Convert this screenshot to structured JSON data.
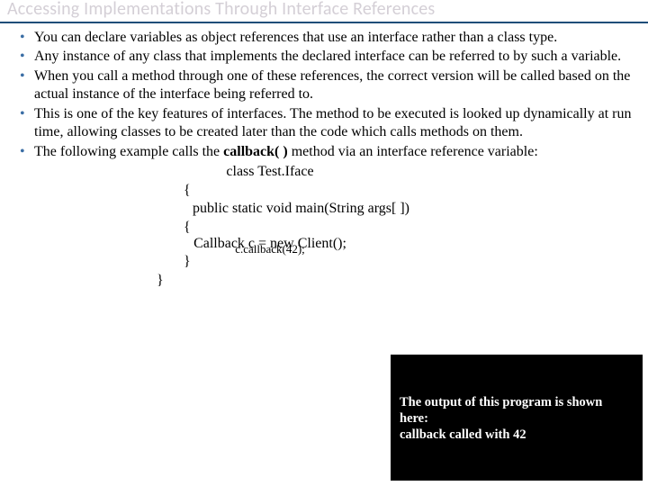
{
  "colors": {
    "title_text": "#d4cfd6",
    "title_underline": "#1f4e79",
    "bullet_marker": "#3b6ea5",
    "body_text": "#000000",
    "output_bg": "#000000",
    "output_text": "#ffffff"
  },
  "title": "Accessing Implementations Through Interface References",
  "bullets": [
    "You can declare variables as object references that use an interface rather than a class type.",
    "Any instance of any class that implements the declared interface can be referred to by such a variable.",
    "When you call a method through one of these references, the correct version will be called based on the actual instance of the interface being referred to.",
    "This is one of the key features of interfaces. The method to be executed is looked up dynamically at run time, allowing classes to be created later than the code which calls methods on them.",
    "The following example calls the <span class=\"bold\">callback( )</span> method via an interface reference variable:"
  ],
  "code": {
    "l1": "class Test.Iface",
    "l2": "{",
    "l3": " public static void main(String args[ ])",
    "l4": "{",
    "l5a": "Callback c = new Client();",
    "l5b": "c.callback(42);",
    "l6": "}",
    "l7": "}"
  },
  "output": {
    "line1": "The output of this program is shown",
    "line2": "here:",
    "line3": "callback called with 42"
  }
}
